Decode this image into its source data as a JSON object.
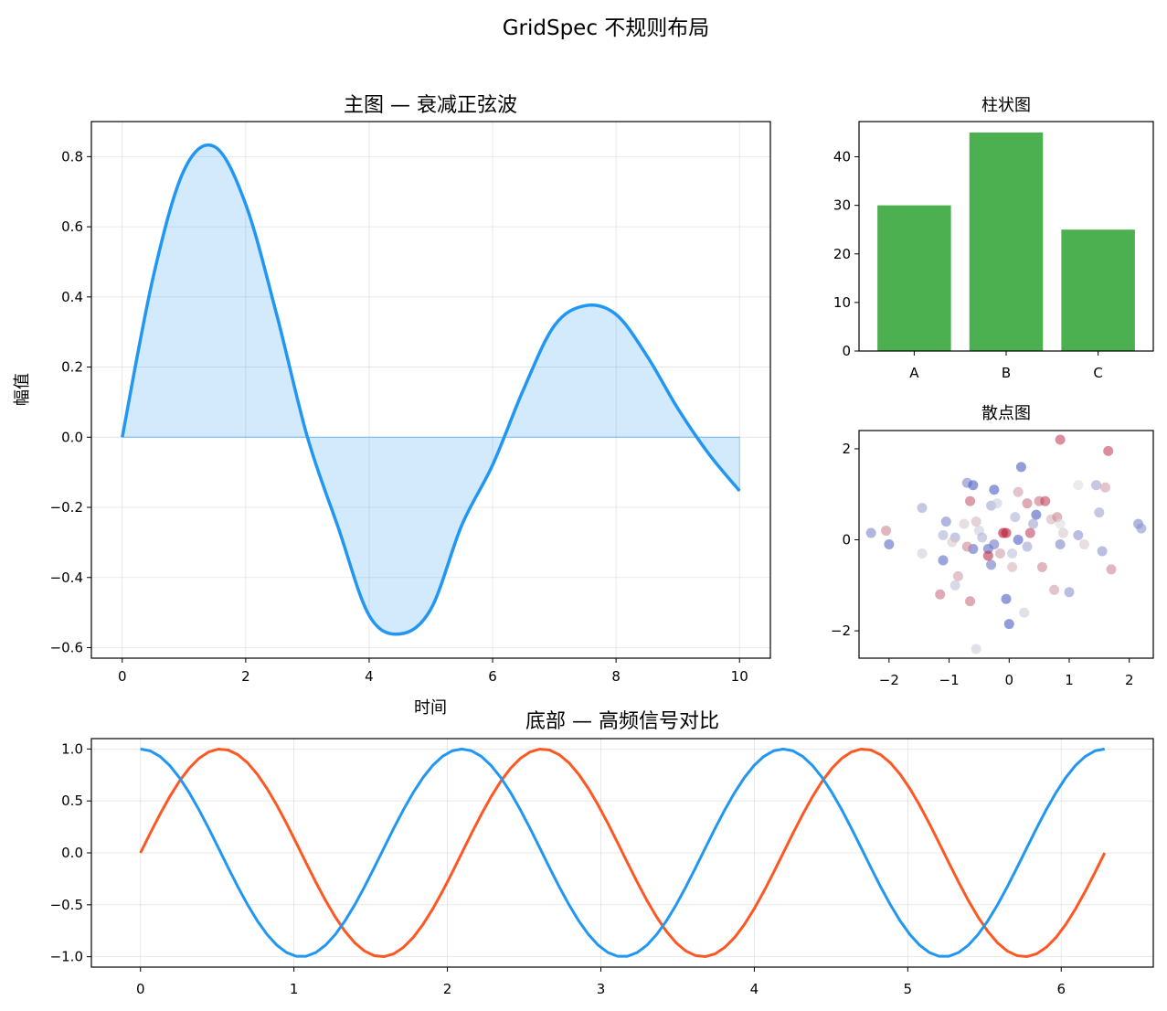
{
  "figure": {
    "suptitle": "GridSpec 不规则布局"
  },
  "chart_data": [
    {
      "id": "main",
      "type": "area",
      "title": "主图 — 衰减正弦波",
      "xlabel": "时间",
      "ylabel": "幅值",
      "xlim": [
        -0.5,
        10.5
      ],
      "ylim": [
        -0.63,
        0.9
      ],
      "xticks": [
        0,
        2,
        4,
        6,
        8,
        10
      ],
      "yticks": [
        -0.6,
        -0.4,
        -0.2,
        0.0,
        0.2,
        0.4,
        0.6,
        0.8
      ],
      "grid": true,
      "series": [
        {
          "x": [
            0,
            0.5,
            1.0,
            1.5,
            2.0,
            2.5,
            3.0,
            3.5,
            4.0,
            4.5,
            5.0,
            5.5,
            6.0,
            6.5,
            7.0,
            7.5,
            8.0,
            8.5,
            9.0,
            9.5,
            10.0
          ],
          "y": [
            0.0,
            0.456,
            0.761,
            0.828,
            0.664,
            0.351,
            0.0,
            -0.258,
            -0.508,
            -0.561,
            -0.49,
            -0.251,
            -0.079,
            0.136,
            0.318,
            0.375,
            0.35,
            0.232,
            0.082,
            -0.047,
            -0.153
          ],
          "color": "#2196F3",
          "fill": "#2196F3",
          "fill_opacity": 0.2
        }
      ]
    },
    {
      "id": "bar",
      "type": "bar",
      "title": "柱状图",
      "categories": [
        "A",
        "B",
        "C"
      ],
      "values": [
        30,
        45,
        25
      ],
      "color": "#4CAF50",
      "ylim": [
        0,
        47.25
      ],
      "yticks": [
        0,
        10,
        20,
        30,
        40
      ]
    },
    {
      "id": "scatter",
      "type": "scatter",
      "title": "散点图",
      "xlim": [
        -2.5,
        2.4
      ],
      "ylim": [
        -2.6,
        2.4
      ],
      "xticks": [
        -2,
        -1,
        0,
        1,
        2
      ],
      "yticks": [
        -2,
        0,
        2
      ],
      "colormap": "coolwarm",
      "points": [
        [
          -2.3,
          0.15,
          0.2
        ],
        [
          -2.05,
          0.2,
          0.7
        ],
        [
          -2.0,
          -0.1,
          0.1
        ],
        [
          -1.45,
          0.7,
          0.3
        ],
        [
          -1.45,
          -0.3,
          0.45
        ],
        [
          -1.1,
          0.1,
          0.35
        ],
        [
          -1.05,
          0.4,
          0.2
        ],
        [
          -1.1,
          -0.45,
          0.1
        ],
        [
          -1.15,
          -1.2,
          0.75
        ],
        [
          -0.9,
          0.05,
          0.3
        ],
        [
          -0.85,
          -0.8,
          0.65
        ],
        [
          -0.9,
          -1.0,
          0.4
        ],
        [
          -0.75,
          0.35,
          0.55
        ],
        [
          -0.7,
          1.25,
          0.2
        ],
        [
          -0.65,
          0.85,
          0.8
        ],
        [
          -0.65,
          -1.35,
          0.75
        ],
        [
          -0.6,
          1.2,
          0.05
        ],
        [
          -0.5,
          0.2,
          0.45
        ],
        [
          -0.55,
          0.4,
          0.6
        ],
        [
          -0.55,
          -2.4,
          0.45
        ],
        [
          -0.45,
          0.05,
          0.35
        ],
        [
          -0.3,
          0.75,
          0.3
        ],
        [
          -0.35,
          -0.2,
          0.1
        ],
        [
          -0.3,
          -0.55,
          0.15
        ],
        [
          -0.25,
          1.1,
          0.05
        ],
        [
          -0.2,
          0.8,
          0.45
        ],
        [
          -0.1,
          0.15,
          0.95
        ],
        [
          -0.05,
          -1.3,
          0.05
        ],
        [
          0.0,
          -1.85,
          0.05
        ],
        [
          0.05,
          -0.6,
          0.6
        ],
        [
          0.1,
          0.5,
          0.35
        ],
        [
          0.15,
          1.05,
          0.65
        ],
        [
          0.2,
          1.6,
          0.05
        ],
        [
          0.25,
          -1.6,
          0.45
        ],
        [
          0.3,
          0.8,
          0.75
        ],
        [
          0.3,
          -0.15,
          0.3
        ],
        [
          0.35,
          0.15,
          0.85
        ],
        [
          0.45,
          0.55,
          0.05
        ],
        [
          0.5,
          0.85,
          0.75
        ],
        [
          0.55,
          -0.6,
          0.7
        ],
        [
          0.6,
          0.85,
          0.85
        ],
        [
          0.7,
          0.45,
          0.6
        ],
        [
          0.75,
          -1.1,
          0.65
        ],
        [
          0.8,
          0.5,
          0.7
        ],
        [
          0.85,
          0.35,
          0.5
        ],
        [
          0.85,
          -0.1,
          0.2
        ],
        [
          0.85,
          2.2,
          0.85
        ],
        [
          0.9,
          0.15,
          0.55
        ],
        [
          1.0,
          -1.15,
          0.25
        ],
        [
          1.15,
          1.2,
          0.5
        ],
        [
          1.15,
          0.1,
          0.25
        ],
        [
          1.25,
          -0.1,
          0.55
        ],
        [
          1.45,
          1.2,
          0.3
        ],
        [
          1.5,
          0.6,
          0.3
        ],
        [
          1.55,
          -0.25,
          0.25
        ],
        [
          1.6,
          1.15,
          0.65
        ],
        [
          1.65,
          1.95,
          0.85
        ],
        [
          1.7,
          -0.65,
          0.7
        ],
        [
          2.15,
          0.35,
          0.2
        ],
        [
          2.2,
          0.25,
          0.25
        ],
        [
          -0.05,
          0.15,
          0.95
        ],
        [
          0.15,
          0.0,
          0.05
        ],
        [
          -0.35,
          -0.35,
          0.9
        ],
        [
          -0.25,
          -0.1,
          0.15
        ],
        [
          0.05,
          -0.3,
          0.4
        ],
        [
          -0.6,
          -0.2,
          0.1
        ],
        [
          -0.7,
          -0.15,
          0.7
        ],
        [
          -0.95,
          -0.05,
          0.55
        ],
        [
          0.4,
          0.35,
          0.3
        ],
        [
          -0.15,
          -0.3,
          0.65
        ]
      ]
    },
    {
      "id": "bottom",
      "type": "line",
      "title": "底部 — 高频信号对比",
      "xlim": [
        -0.32,
        6.6
      ],
      "ylim": [
        -1.1,
        1.1
      ],
      "xticks": [
        0,
        1,
        2,
        3,
        4,
        5,
        6
      ],
      "yticks": [
        -1.0,
        -0.5,
        0.0,
        0.5,
        1.0
      ],
      "grid": true,
      "series": [
        {
          "function": "sin(3x)",
          "color": "#FF5722",
          "x_range": [
            0,
            6.283
          ]
        },
        {
          "function": "cos(3x)",
          "color": "#2196F3",
          "x_range": [
            0,
            6.283
          ]
        }
      ]
    }
  ]
}
